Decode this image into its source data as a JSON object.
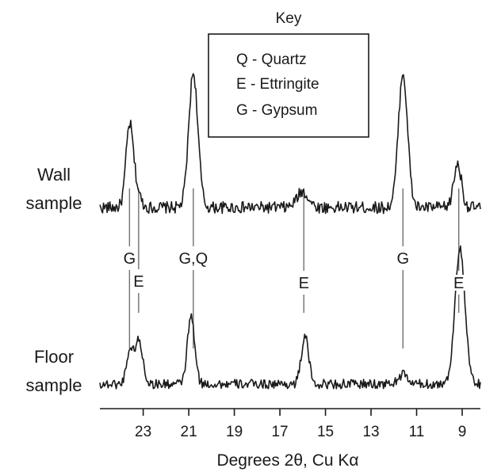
{
  "chart_data": {
    "type": "line",
    "xlabel": "Degrees 2θ, Cu Kα",
    "x_reversed": true,
    "xlim": [
      8.2,
      24.9
    ],
    "x_ticks": [
      23,
      21,
      19,
      17,
      15,
      13,
      11,
      9
    ],
    "y_axis_shown": false,
    "grid": false,
    "key": {
      "title": "Key",
      "placement": "top-right",
      "entries": [
        "Q - Quartz",
        "E - Ettringite",
        "G - Gypsum"
      ]
    },
    "series": [
      {
        "name": "Wall sample",
        "label_lines": [
          "Wall",
          "sample"
        ],
        "baseline": 15,
        "peaks": [
          {
            "x": 23.6,
            "height": 100,
            "width": 0.16
          },
          {
            "x": 23.3,
            "height": 20,
            "width": 0.18
          },
          {
            "x": 20.8,
            "height": 170,
            "width": 0.2
          },
          {
            "x": 16.0,
            "height": 20,
            "width": 0.25
          },
          {
            "x": 11.6,
            "height": 170,
            "width": 0.2
          },
          {
            "x": 9.2,
            "height": 55,
            "width": 0.17
          }
        ]
      },
      {
        "name": "Floor sample",
        "label_lines": [
          "Floor",
          "sample"
        ],
        "baseline": 12,
        "peaks": [
          {
            "x": 23.6,
            "height": 40,
            "width": 0.14
          },
          {
            "x": 23.2,
            "height": 55,
            "width": 0.18
          },
          {
            "x": 20.9,
            "height": 85,
            "width": 0.16
          },
          {
            "x": 15.9,
            "height": 60,
            "width": 0.16
          },
          {
            "x": 11.6,
            "height": 12,
            "width": 0.2
          },
          {
            "x": 9.1,
            "height": 170,
            "width": 0.22
          }
        ]
      }
    ],
    "peak_assignments": [
      {
        "label": "G",
        "x": 23.6
      },
      {
        "label": "E",
        "x": 23.2
      },
      {
        "label": "G,Q",
        "x": 20.8
      },
      {
        "label": "E",
        "x": 15.95
      },
      {
        "label": "G",
        "x": 11.6
      },
      {
        "label": "E",
        "x": 9.15
      }
    ]
  }
}
